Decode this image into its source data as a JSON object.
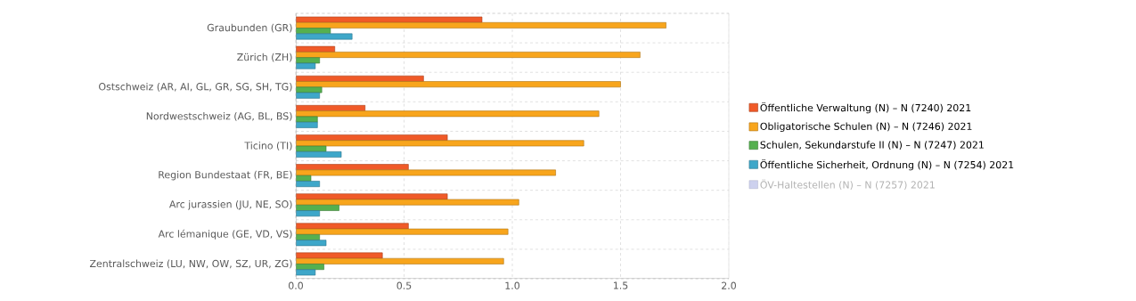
{
  "chart_data": {
    "type": "bar",
    "orientation": "horizontal",
    "categories": [
      "Graubunden (GR)",
      "Zürich (ZH)",
      "Ostschweiz (AR, AI, GL, GR, SG, SH, TG)",
      "Nordwestschweiz (AG, BL, BS)",
      "Ticino (TI)",
      "Region Bundestaat (FR, BE)",
      "Arc jurassien (JU, NE, SO)",
      "Arc lémanique (GE, VD, VS)",
      "Zentralschweiz (LU, NW, OW, SZ, UR, ZG)"
    ],
    "series": [
      {
        "name": "Öffentliche Verwaltung (N) – N (7240)  2021",
        "color": "#f05a28",
        "values": [
          0.86,
          0.18,
          0.59,
          0.32,
          0.7,
          0.52,
          0.7,
          0.52,
          0.4
        ]
      },
      {
        "name": "Obligatorische Schulen (N) – N (7246)  2021",
        "color": "#f8a51c",
        "values": [
          1.71,
          1.59,
          1.5,
          1.4,
          1.33,
          1.2,
          1.03,
          0.98,
          0.96
        ]
      },
      {
        "name": "Schulen, Sekundarstufe II (N) – N (7247)  2021",
        "color": "#55b04f",
        "values": [
          0.16,
          0.11,
          0.12,
          0.1,
          0.14,
          0.07,
          0.2,
          0.11,
          0.13
        ]
      },
      {
        "name": "Öffentliche Sicherheit, Ordnung (N) – N (7254)  2021",
        "color": "#3ea7c9",
        "values": [
          0.26,
          0.09,
          0.11,
          0.1,
          0.21,
          0.11,
          0.11,
          0.14,
          0.09
        ]
      },
      {
        "name": "ÖV-Haltestellen (N) – N (7257)  2021",
        "color": "#cdd1ee",
        "values": [
          null,
          null,
          null,
          null,
          null,
          null,
          null,
          null,
          null
        ]
      }
    ],
    "xlim": [
      0,
      2
    ],
    "xticks": [
      {
        "value": 0,
        "label": "0.0"
      },
      0.5,
      {
        "value": 1,
        "label": "1.0"
      },
      1.5,
      {
        "value": 2,
        "label": "2.0"
      }
    ],
    "grid": true,
    "legend": "right"
  }
}
